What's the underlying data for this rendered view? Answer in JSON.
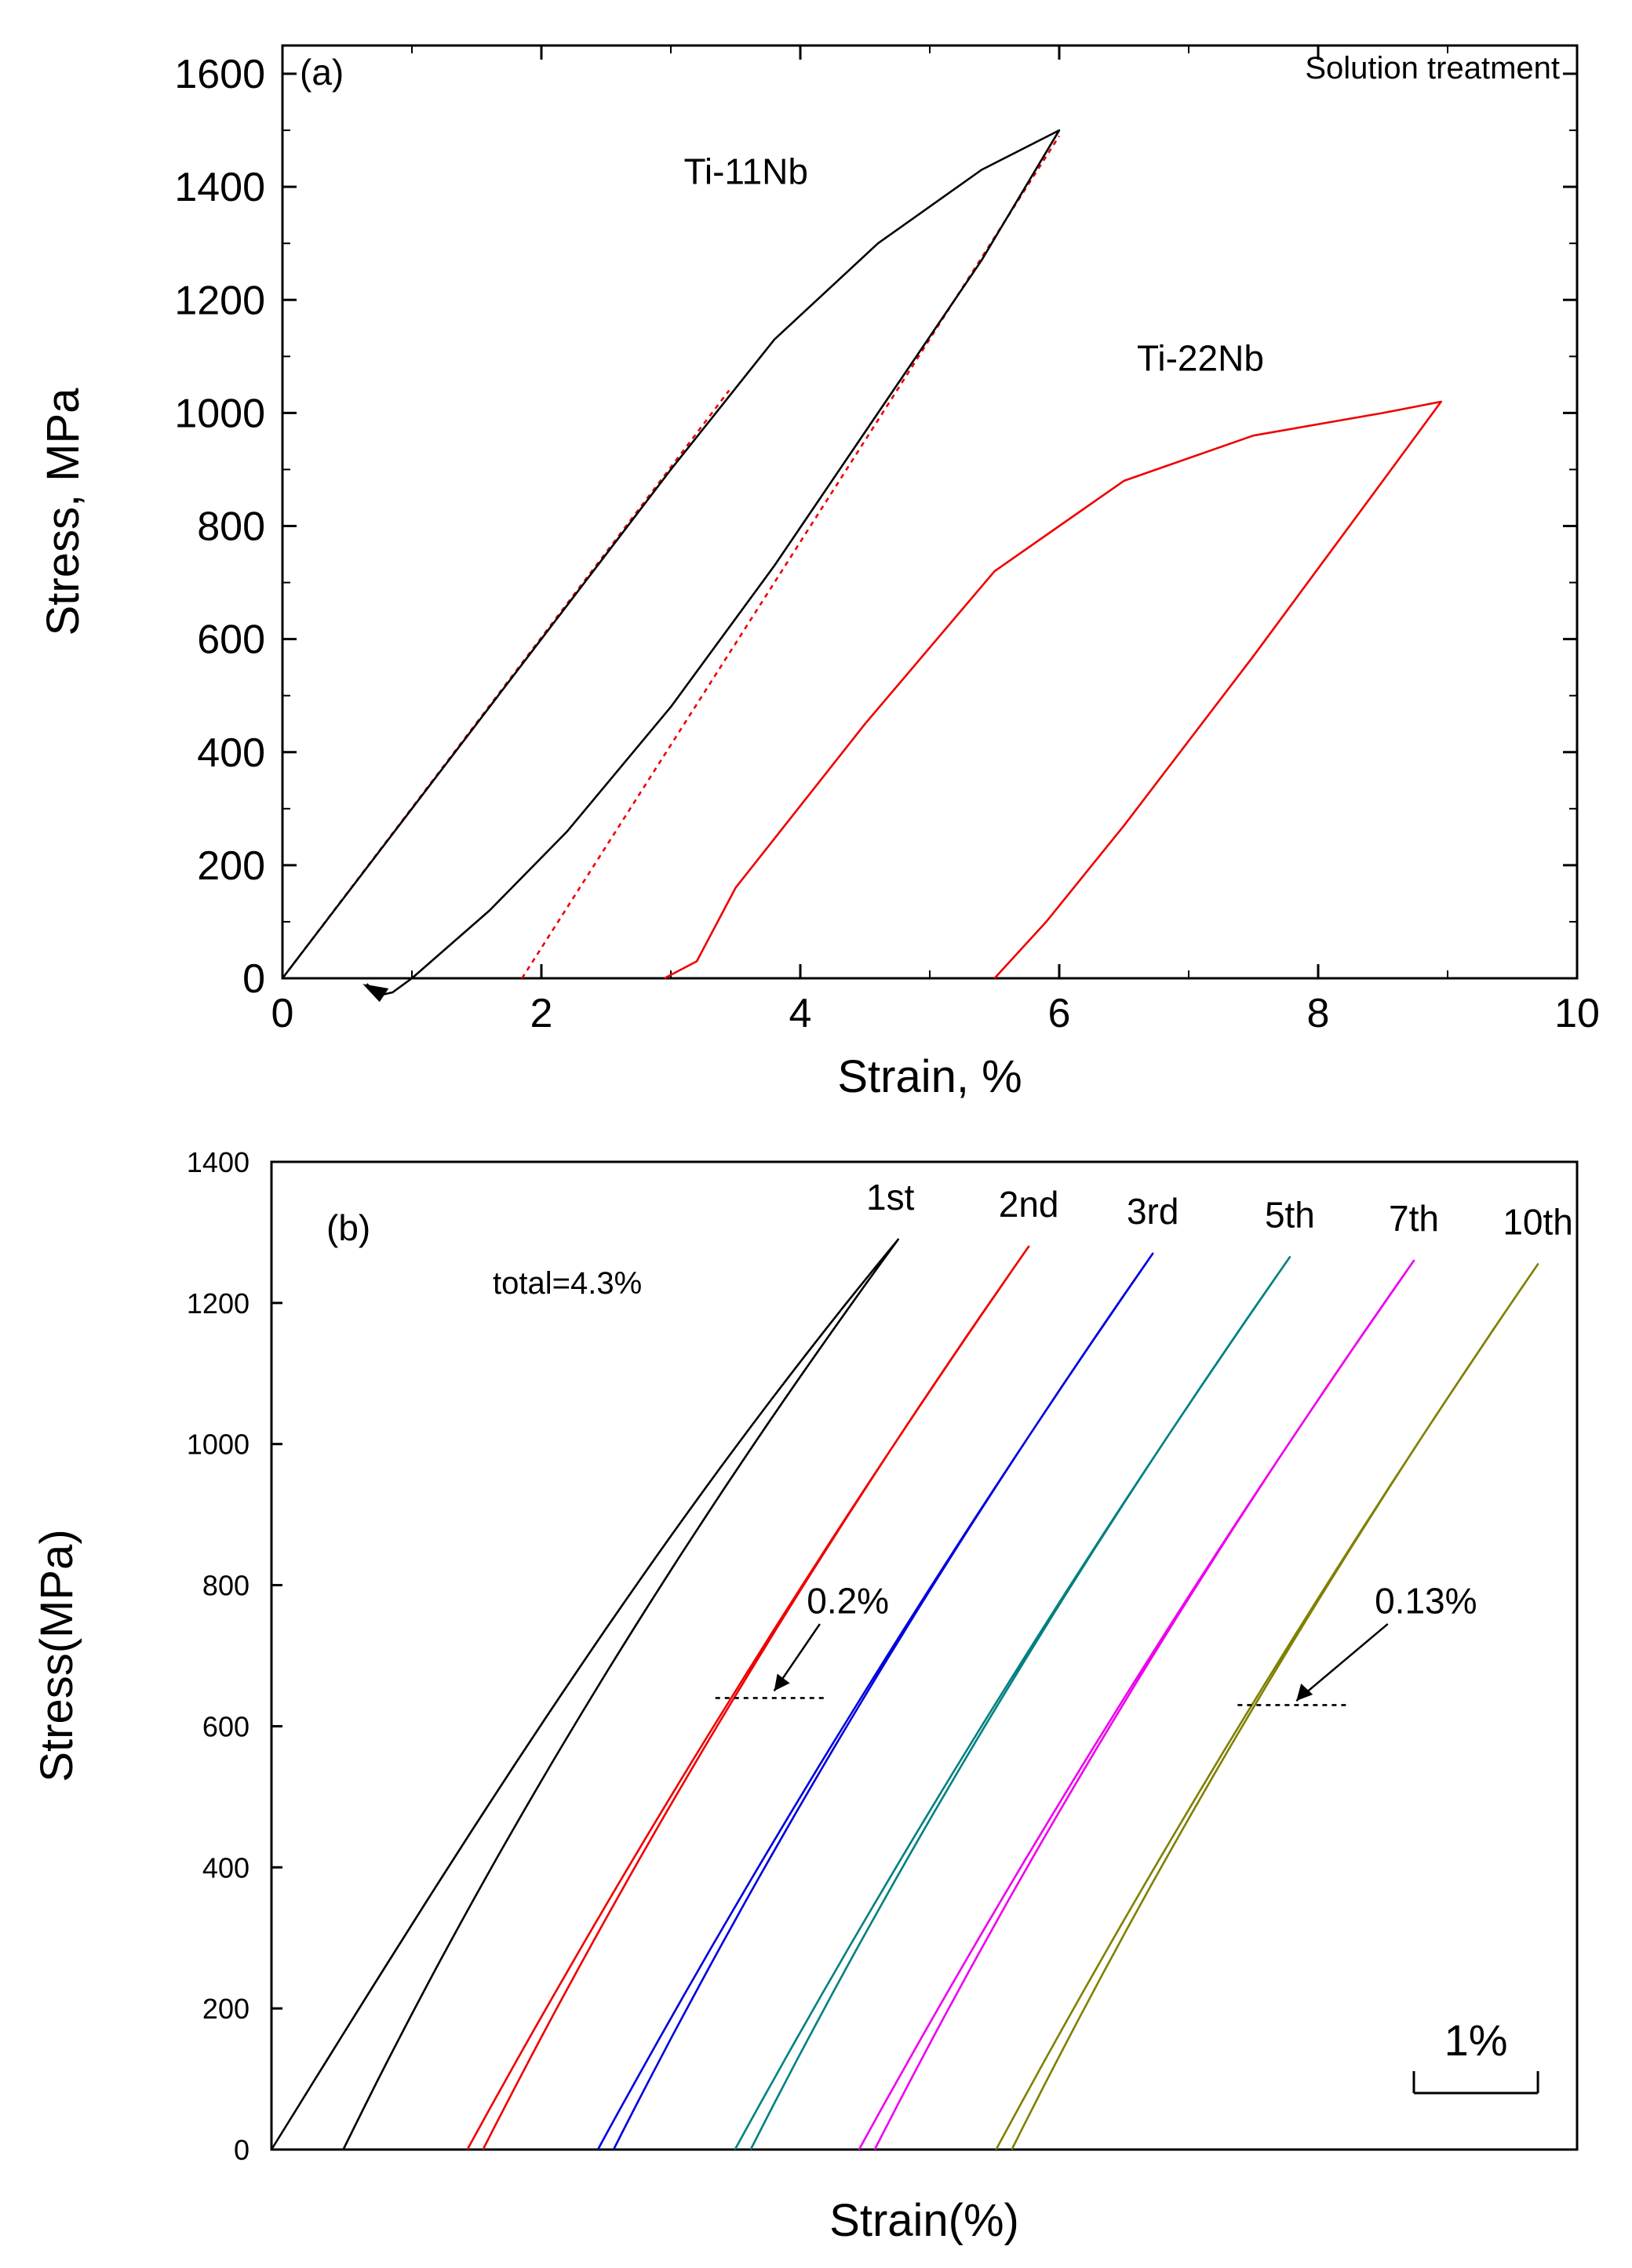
{
  "chart_data": [
    {
      "type": "line",
      "panel_label": "(a)",
      "title": "Solution treatment",
      "xlabel": "Strain, %",
      "ylabel": "Stress, MPa",
      "xlim": [
        0,
        10
      ],
      "ylim": [
        0,
        1650
      ],
      "xticks": [
        0,
        2,
        4,
        6,
        8,
        10
      ],
      "xtick_labels": [
        "0",
        "2",
        "4",
        "6",
        "8",
        "10"
      ],
      "yticks": [
        0,
        200,
        400,
        600,
        800,
        1000,
        1200,
        1400,
        1600
      ],
      "ytick_labels": [
        "0",
        "200",
        "400",
        "600",
        "800",
        "1000",
        "1200",
        "1400",
        "1600"
      ],
      "series": [
        {
          "name": "Ti-11Nb",
          "color": "#000000",
          "x": [
            0,
            1,
            2,
            3,
            3.8,
            4.6,
            5.4,
            6.0,
            5.4,
            4.6,
            3.8,
            3.0,
            2.2,
            1.6,
            1.0,
            0.85,
            0.75,
            0.7,
            0.65
          ],
          "y": [
            0,
            300,
            600,
            900,
            1130,
            1300,
            1430,
            1500,
            1270,
            1000,
            730,
            480,
            260,
            120,
            0,
            -25,
            -30,
            -20,
            -10
          ]
        },
        {
          "name": "Ti-22Nb",
          "color": "#ee0000",
          "x": [
            2.95,
            3.2,
            3.5,
            4.5,
            5.5,
            6.0,
            6.5,
            7.5,
            8.5,
            8.95,
            8.5,
            7.5,
            6.5,
            5.9,
            5.5
          ],
          "y": [
            0,
            30,
            160,
            450,
            720,
            800,
            880,
            960,
            1000,
            1020,
            880,
            570,
            270,
            100,
            0
          ]
        },
        {
          "name": "elastic reference (dotted)",
          "color": "#ee0000",
          "style": "dotted",
          "x": [
            0,
            3.45
          ],
          "y": [
            0,
            1040
          ],
          "x2": [
            1.85,
            6.0
          ],
          "y2": [
            0,
            1490
          ]
        }
      ]
    },
    {
      "type": "line",
      "panel_label": "(b)",
      "xlabel": "Strain(%)",
      "ylabel": "Stress(MPa)",
      "ylim": [
        0,
        1400
      ],
      "yticks": [
        0,
        200,
        400,
        600,
        800,
        1000,
        1200,
        1400
      ],
      "ytick_labels": [
        "0",
        "200",
        "400",
        "600",
        "800",
        "1000",
        "1200",
        "1400"
      ],
      "annotation_total": "total=4.3%",
      "scale_bar_label": "1%",
      "residual_labels": [
        {
          "text": "0.2%",
          "stress": 640
        },
        {
          "text": "0.13%",
          "stress": 630
        }
      ],
      "series": [
        {
          "name": "1st",
          "color": "#000000",
          "x_offset": 0.0,
          "max_strain": 4.8,
          "max_stress": 1290
        },
        {
          "name": "2nd",
          "color": "#ee0000",
          "x_offset": 1.5,
          "max_strain": 5.8,
          "max_stress": 1280
        },
        {
          "name": "3rd",
          "color": "#0000dd",
          "x_offset": 2.5,
          "max_strain": 6.75,
          "max_stress": 1270
        },
        {
          "name": "5th",
          "color": "#008080",
          "x_offset": 3.55,
          "max_strain": 7.8,
          "max_stress": 1265
        },
        {
          "name": "7th",
          "color": "#ee00ee",
          "x_offset": 4.5,
          "max_strain": 8.75,
          "max_stress": 1260
        },
        {
          "name": "10th",
          "color": "#808000",
          "x_offset": 5.55,
          "max_strain": 9.7,
          "max_stress": 1255
        }
      ]
    }
  ]
}
